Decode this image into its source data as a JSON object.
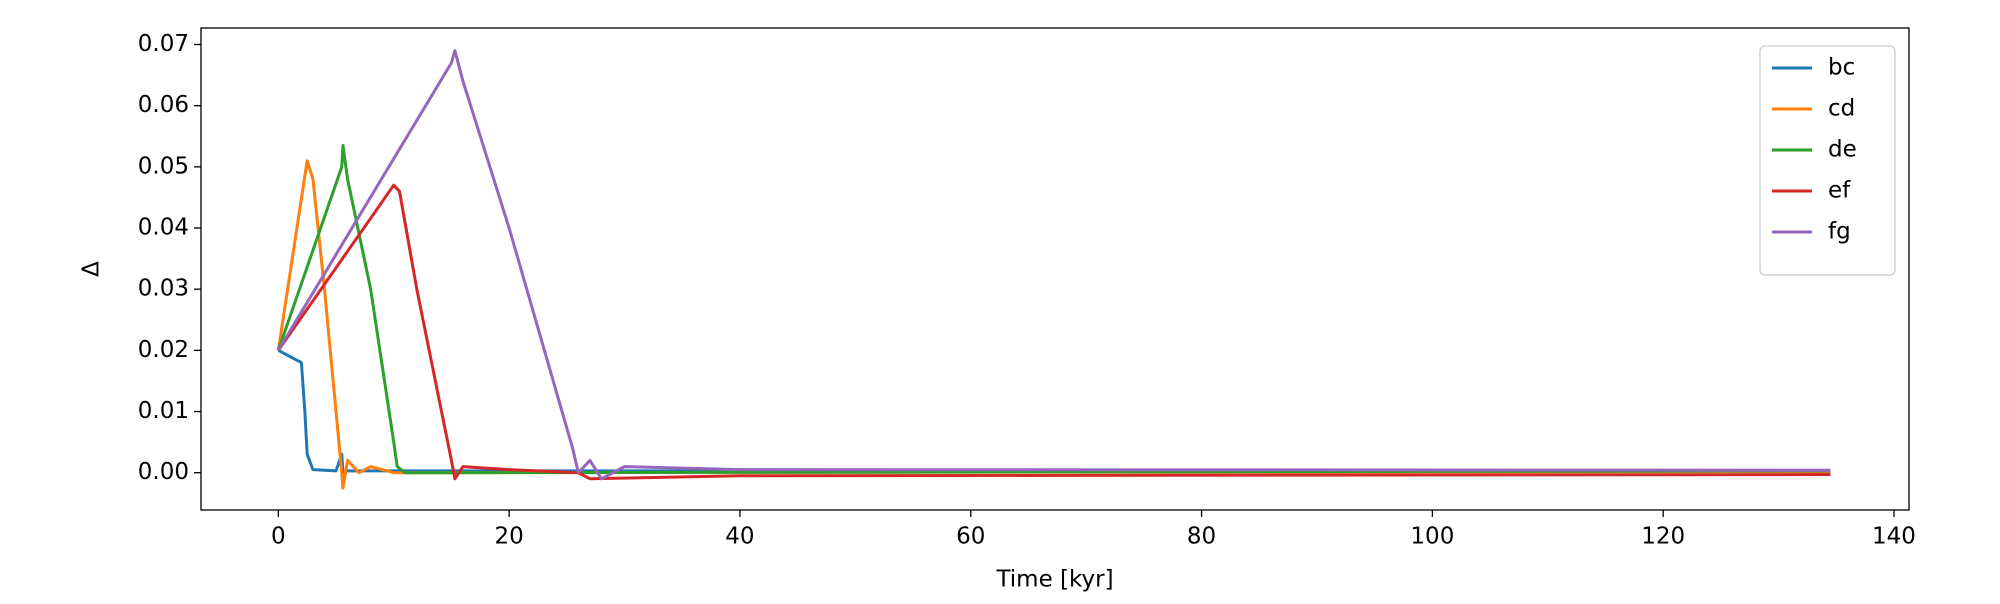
{
  "chart_data": {
    "type": "line",
    "xlabel": "Time [kyr]",
    "ylabel": "Δ",
    "xlim": [
      -6.7,
      141.3
    ],
    "ylim": [
      -0.0061,
      0.0727
    ],
    "xticks": [
      0,
      20,
      40,
      60,
      80,
      100,
      120,
      140
    ],
    "yticks": [
      {
        "value": 0,
        "label": "0.00"
      },
      0.01,
      0.02,
      0.03,
      0.04,
      0.05,
      0.06,
      0.07
    ],
    "legend": "upper right",
    "series": [
      {
        "name": "bc",
        "color": "#1f77b4",
        "x": [
          0,
          1.5,
          2,
          2.3,
          2.5,
          3,
          5,
          5.5,
          5.6,
          6,
          134.5
        ],
        "values": [
          0.02,
          0.0185,
          0.018,
          0.01,
          0.003,
          0.0005,
          0.0003,
          0.003,
          0.0,
          0.0003,
          0.0003
        ]
      },
      {
        "name": "cd",
        "color": "#ff7f0e",
        "x": [
          0,
          2.5,
          3,
          4,
          5,
          5.5,
          5.6,
          6,
          7,
          8,
          10,
          134.5
        ],
        "values": [
          0.02,
          0.051,
          0.048,
          0.03,
          0.01,
          0.0,
          -0.0025,
          0.002,
          0.0,
          0.001,
          0.0,
          0.0002
        ]
      },
      {
        "name": "de",
        "color": "#2ca02c",
        "x": [
          0,
          5.5,
          5.6,
          6,
          8,
          10,
          10.3,
          11,
          15,
          134.5
        ],
        "values": [
          0.02,
          0.05,
          0.0535,
          0.048,
          0.03,
          0.005,
          0.001,
          0.0,
          0.0,
          0.0003
        ]
      },
      {
        "name": "ef",
        "color": "#d62728",
        "x": [
          0,
          10,
          10.5,
          12,
          15,
          15.3,
          16,
          20,
          26,
          27,
          40,
          134.5
        ],
        "values": [
          0.02,
          0.047,
          0.046,
          0.03,
          0.002,
          -0.001,
          0.001,
          0.0005,
          0.0,
          -0.001,
          -0.0005,
          -0.0003
        ]
      },
      {
        "name": "fg",
        "color": "#9467bd",
        "x": [
          0,
          15,
          15.3,
          16,
          20,
          25.5,
          26,
          27,
          28,
          30,
          40,
          134.5
        ],
        "values": [
          0.02,
          0.067,
          0.069,
          0.064,
          0.04,
          0.004,
          0.0,
          0.002,
          -0.001,
          0.001,
          0.0005,
          0.0004
        ]
      }
    ]
  }
}
